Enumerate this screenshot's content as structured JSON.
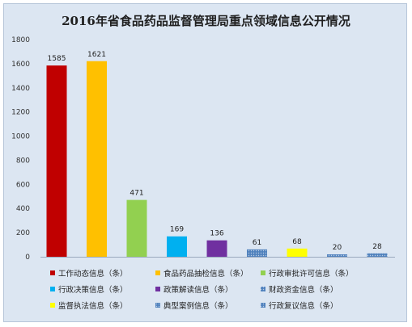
{
  "chart_data": {
    "type": "bar",
    "title": "2016年省食品药品监督管理局重点领域信息公开情况",
    "xlabel": "",
    "ylabel": "",
    "ylim": [
      0,
      1800
    ],
    "yticks": [
      0,
      200,
      400,
      600,
      800,
      1000,
      1200,
      1400,
      1600,
      1800
    ],
    "grid": false,
    "legend_position": "bottom",
    "series": [
      {
        "name": "工作动态信息（条）",
        "value": 1585,
        "color": "#c00000",
        "pattern": "solid"
      },
      {
        "name": "食品药品抽检信息（条）",
        "value": 1621,
        "color": "#ffc000",
        "pattern": "solid"
      },
      {
        "name": "行政审批许可信息（条）",
        "value": 471,
        "color": "#92d050",
        "pattern": "solid"
      },
      {
        "name": "行政决策信息（条）",
        "value": 169,
        "color": "#00b0f0",
        "pattern": "solid"
      },
      {
        "name": "政策解读信息（条）",
        "value": 136,
        "color": "#7030a0",
        "pattern": "solid"
      },
      {
        "name": "财政资金信息（条）",
        "value": 61,
        "color": "#4f81bd",
        "pattern": "dots"
      },
      {
        "name": "监督执法信息（条）",
        "value": 68,
        "color": "#ffff00",
        "pattern": "solid"
      },
      {
        "name": "典型案例信息（条）",
        "value": 20,
        "color": "#4f81bd",
        "pattern": "dots"
      },
      {
        "name": "行政复议信息（条）",
        "value": 28,
        "color": "#4f81bd",
        "pattern": "dots"
      }
    ]
  }
}
